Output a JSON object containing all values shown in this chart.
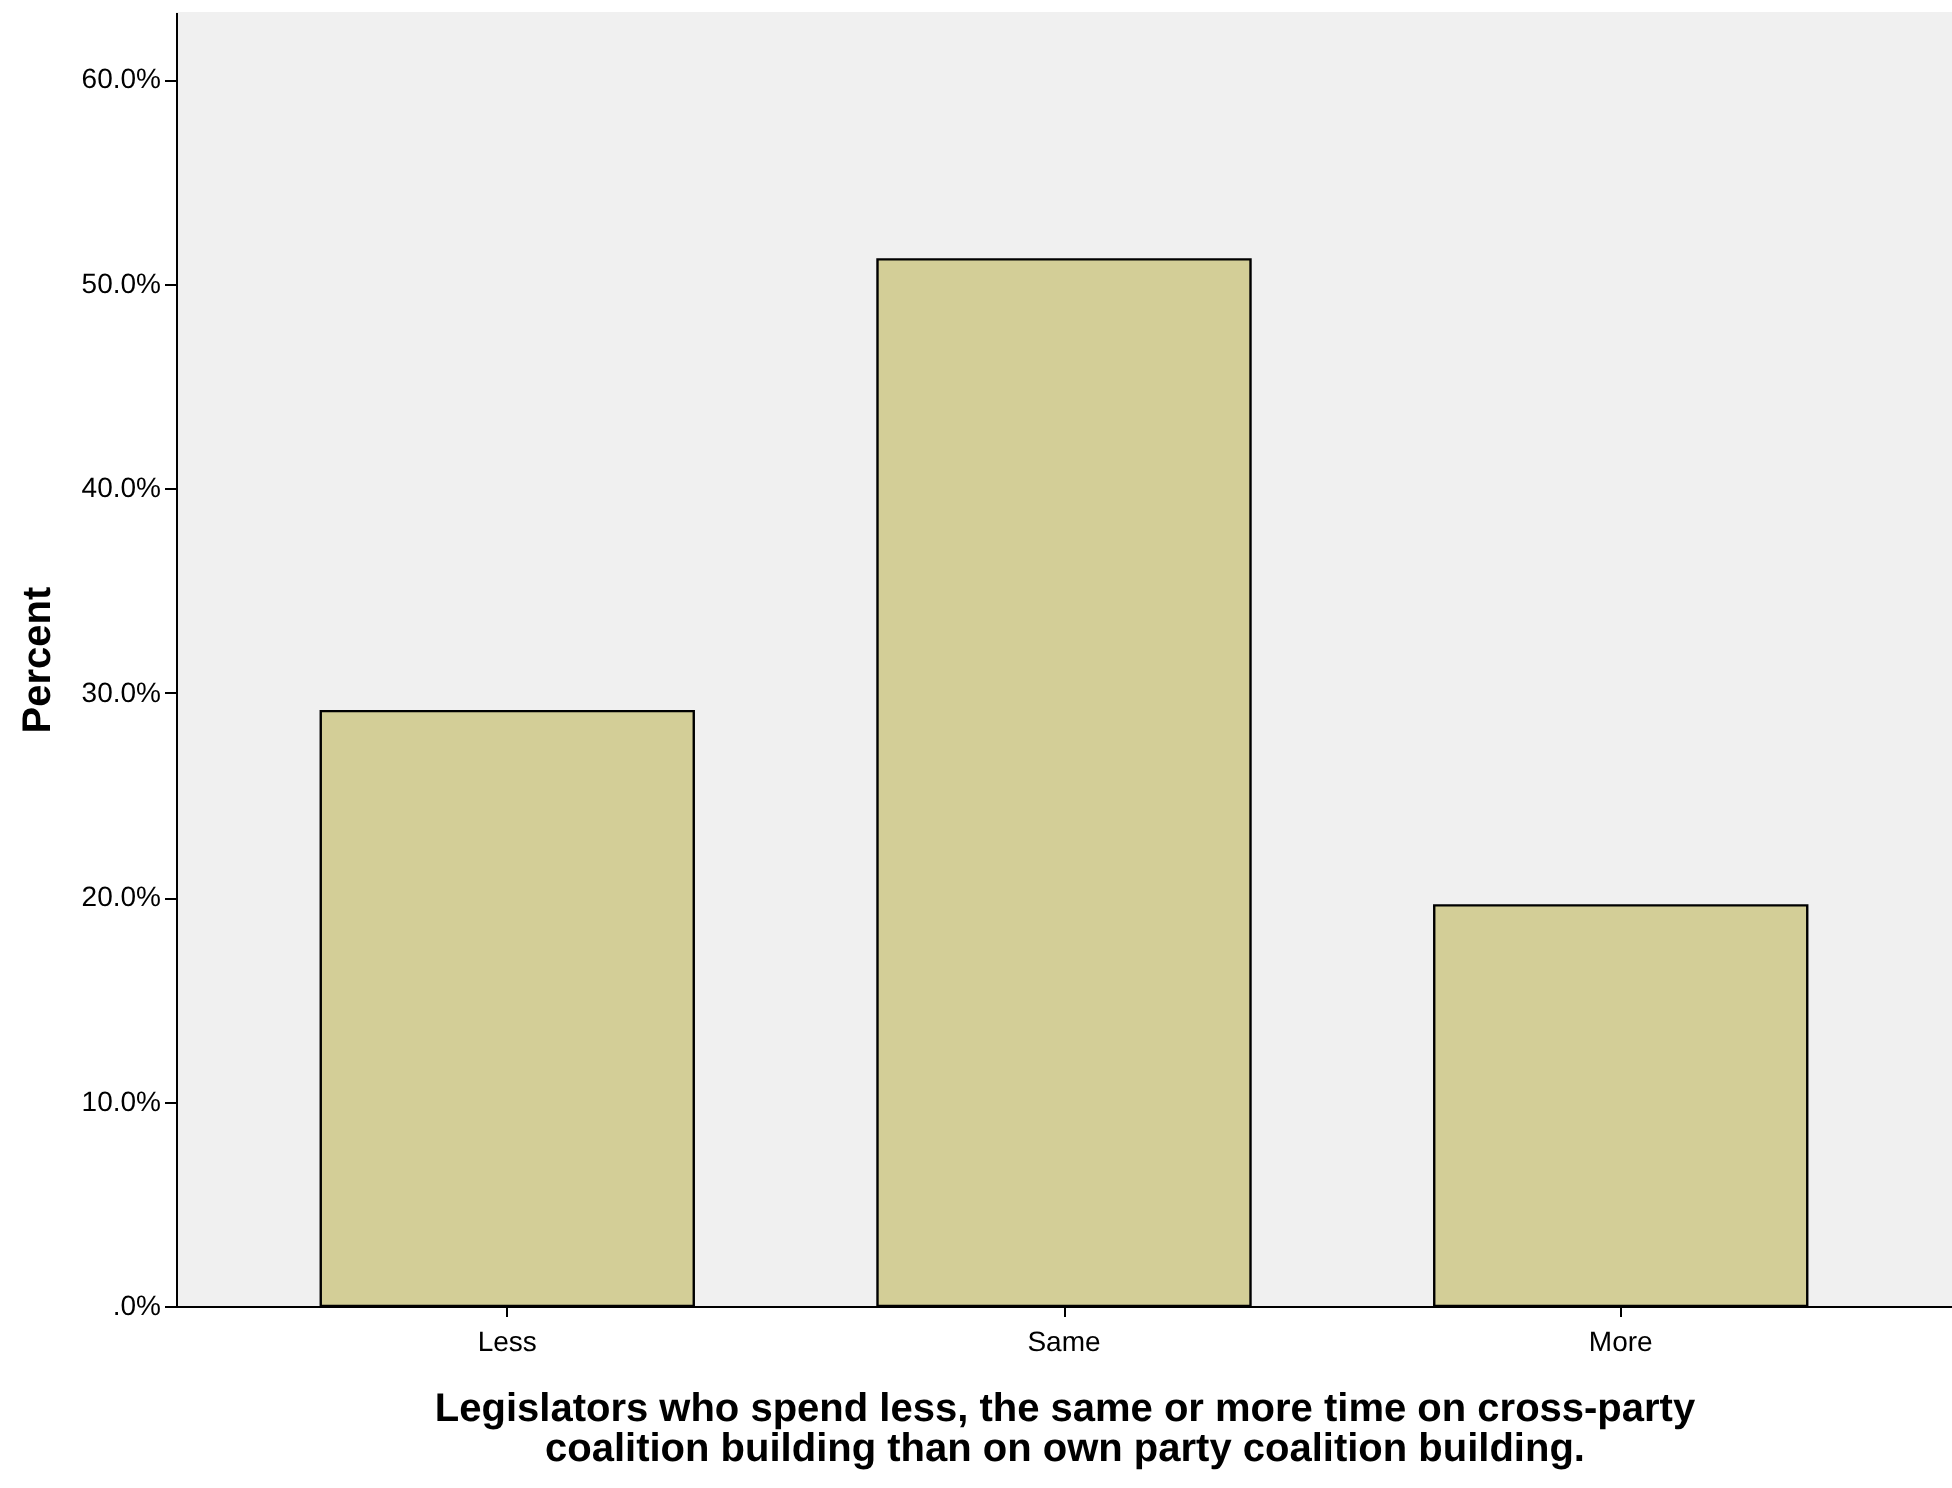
{
  "chart_data": {
    "type": "bar",
    "xlabel": "Legislators who spend less, the same or more time on cross-party coalition building than on own party coalition building.",
    "ylabel": "Percent",
    "categories": [
      "Less",
      "Same",
      "More"
    ],
    "values": [
      29.1,
      51.2,
      19.6
    ],
    "color": "#d3ce97",
    "ylim": [
      0,
      63.3
    ],
    "yticks": [
      {
        "value": 0,
        "label": ".0%"
      },
      {
        "value": 10,
        "label": "10.0%"
      },
      {
        "value": 20,
        "label": "20.0%"
      },
      {
        "value": 30,
        "label": "30.0%"
      },
      {
        "value": 40,
        "label": "40.0%"
      },
      {
        "value": 50,
        "label": "50.0%"
      },
      {
        "value": 60,
        "label": "60.0%"
      }
    ],
    "grid": false
  }
}
